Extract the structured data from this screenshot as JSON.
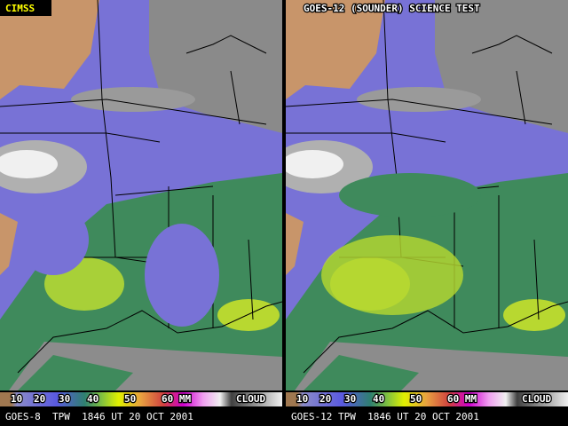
{
  "panels": [
    {
      "label": "CIMSS",
      "caption": "GOES-8  TPW  1846 UT 20 OCT 2001"
    },
    {
      "label": "GOES-12 (SOUNDER) SCIENCE TEST",
      "caption": "GOES-12 TPW  1846 UT 20 OCT 2001"
    }
  ],
  "legend": {
    "labels": [
      "10",
      "20",
      "30",
      "40",
      "50",
      "60 MM",
      "CLOUD"
    ]
  }
}
